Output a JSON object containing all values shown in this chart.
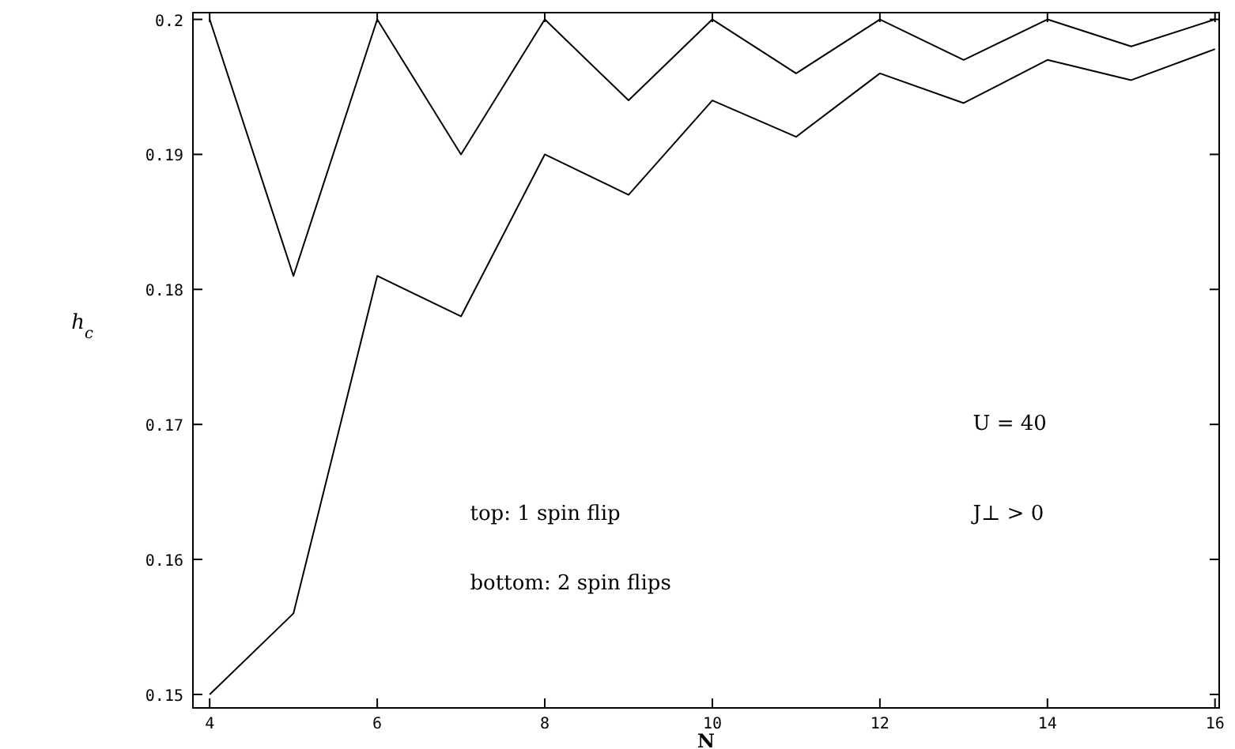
{
  "chart_data": {
    "type": "line",
    "xlabel": "N",
    "ylabel": "h$_{c}$",
    "x": [
      4,
      5,
      6,
      7,
      8,
      9,
      10,
      11,
      12,
      13,
      14,
      15,
      16
    ],
    "series": [
      {
        "color": "#000000",
        "values": [
          0.2,
          0.181,
          0.2,
          0.19,
          0.2,
          0.194,
          0.2,
          0.196,
          0.2,
          0.197,
          0.2,
          0.198,
          0.2
        ]
      },
      {
        "color": "#000000",
        "values": [
          0.15,
          0.156,
          0.181,
          0.178,
          0.19,
          0.187,
          0.194,
          0.1913,
          0.196,
          0.1938,
          0.197,
          0.1955,
          0.1978
        ]
      }
    ],
    "xlim": [
      3.8,
      16.05
    ],
    "ylim": [
      0.149,
      0.2005
    ],
    "xticks": [
      4,
      6,
      8,
      10,
      12,
      14,
      16
    ],
    "yticks": [
      0.15,
      0.16,
      0.17,
      0.18,
      0.19,
      {
        "value": 0.2,
        "label": "0.2"
      }
    ],
    "annotations": [
      "U = 40",
      "J⊥ > 0",
      "top: 1 spin flip",
      "bottom: 2 spin flips"
    ],
    "grid": false,
    "marker": "none",
    "line_style": "solid"
  }
}
